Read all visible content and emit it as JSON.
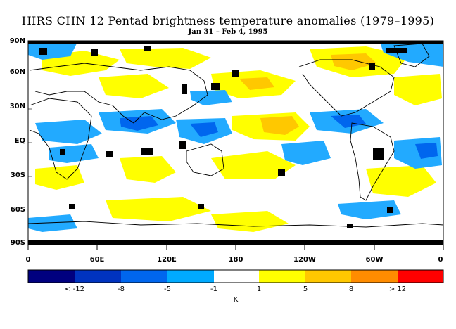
{
  "title": "HIRS CHN 12 Pentad brightness temperature anomalies (1979–1995)",
  "subtitle": "Jan 31 – Feb 4, 1995",
  "lat_labels": [
    "90N",
    "60N",
    "30N",
    "EQ",
    "30S",
    "60S",
    "90S"
  ],
  "lon_labels": [
    "0",
    "60E",
    "120E",
    "180",
    "120W",
    "60W",
    "0"
  ],
  "colorbar": {
    "unit": "K",
    "colors": [
      "#00007f",
      "#0033bf",
      "#0066ee",
      "#00aaff",
      "#ffffff",
      "#ffff00",
      "#ffc800",
      "#ff8c00",
      "#ff0000"
    ],
    "labels": [
      "< -12",
      "-8",
      "-5",
      "-1",
      "1",
      "5",
      "8",
      "> 12"
    ]
  },
  "map_colors": {
    "blue_light": "#22aaff",
    "blue_mid": "#0066ee",
    "yellow": "#ffff00",
    "orange": "#ffc800",
    "missing": "#000000"
  }
}
